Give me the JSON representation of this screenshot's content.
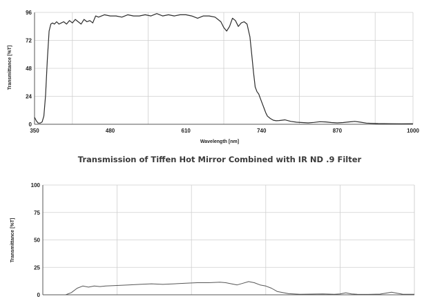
{
  "middle_title": "Transmission of Tiffen Hot Mirror Combined with IR ND .9 Filter",
  "chart_data": [
    {
      "type": "line",
      "xlabel": "Wavelength [nm]",
      "ylabel": "Transmittance [%T]",
      "xlim": [
        350,
        1000
      ],
      "ylim": [
        0,
        96
      ],
      "xticks": [
        350,
        480,
        610,
        740,
        870,
        1000
      ],
      "yticks": [
        0,
        24,
        48,
        72,
        96
      ],
      "grid": true,
      "series": [
        {
          "x": [
            350,
            353,
            356,
            360,
            363,
            366,
            369,
            372,
            375,
            378,
            381,
            384,
            388,
            392,
            396,
            400,
            405,
            410,
            415,
            420,
            425,
            430,
            435,
            440,
            445,
            450,
            455,
            460,
            470,
            480,
            490,
            500,
            510,
            520,
            530,
            540,
            550,
            560,
            570,
            580,
            590,
            600,
            610,
            620,
            630,
            640,
            650,
            660,
            670,
            675,
            680,
            685,
            690,
            695,
            700,
            705,
            710,
            715,
            720,
            723,
            726,
            729,
            732,
            735,
            738,
            741,
            744,
            747,
            750,
            755,
            760,
            765,
            770,
            780,
            790,
            800,
            810,
            820,
            830,
            840,
            850,
            860,
            870,
            880,
            890,
            900,
            910,
            920,
            930,
            940,
            960,
            980,
            1000
          ],
          "y": [
            6,
            3,
            1,
            1,
            2,
            7,
            25,
            55,
            80,
            86,
            87,
            86,
            88,
            86,
            87,
            88,
            86,
            89,
            87,
            90,
            88,
            86,
            90,
            88,
            89,
            87,
            93,
            92,
            94,
            93,
            93,
            92,
            94,
            93,
            93,
            94,
            93,
            95,
            93,
            94,
            93,
            94,
            94,
            93,
            91,
            93,
            93,
            92,
            88,
            83,
            80,
            84,
            91,
            89,
            84,
            87,
            88,
            86,
            75,
            60,
            45,
            32,
            28,
            26,
            22,
            18,
            14,
            10,
            7,
            5,
            3.5,
            3,
            3.2,
            3.8,
            2.5,
            1.8,
            1.5,
            1.2,
            1.6,
            2.2,
            2,
            1.5,
            1.2,
            1.5,
            2,
            2.5,
            1.8,
            1,
            0.8,
            0.6,
            0.5,
            0.4,
            0.5
          ]
        }
      ]
    },
    {
      "type": "line",
      "title": "Transmission of Tiffen Hot Mirror Combined with IR ND .9 Filter",
      "ylabel": "Transmittance [%T]",
      "xlim": [
        350,
        1000
      ],
      "ylim": [
        0,
        100
      ],
      "yticks": [
        0,
        25,
        50,
        75,
        100
      ],
      "grid": true,
      "series": [
        {
          "x": [
            350,
            390,
            400,
            410,
            420,
            430,
            440,
            450,
            460,
            480,
            500,
            520,
            540,
            560,
            580,
            600,
            620,
            640,
            660,
            670,
            680,
            690,
            700,
            710,
            720,
            730,
            740,
            750,
            760,
            780,
            800,
            820,
            840,
            860,
            870,
            880,
            890,
            900,
            920,
            940,
            960,
            980,
            1000
          ],
          "y": [
            0,
            0,
            2,
            6,
            8,
            7,
            8,
            7.5,
            8,
            8.5,
            9,
            9.5,
            10,
            9.5,
            10,
            10.5,
            11,
            11,
            11.5,
            11,
            10,
            9,
            10.5,
            12,
            11,
            9,
            8,
            6,
            3,
            1,
            0.5,
            0.6,
            0.8,
            0.5,
            0.8,
            1.8,
            0.8,
            0.5,
            0.4,
            0.6,
            2.4,
            0.5,
            0.5
          ]
        }
      ]
    }
  ]
}
